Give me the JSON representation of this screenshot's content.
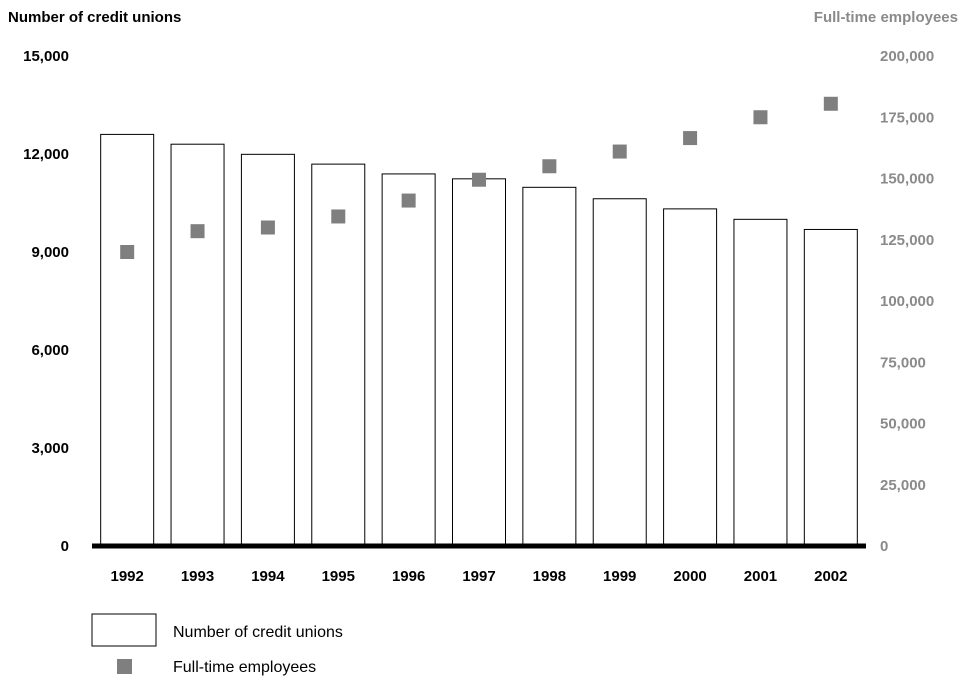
{
  "chart_data": {
    "type": "bar",
    "categories": [
      "1992",
      "1993",
      "1994",
      "1995",
      "1996",
      "1997",
      "1998",
      "1999",
      "2000",
      "2001",
      "2002"
    ],
    "series": [
      {
        "name": "Number of credit unions",
        "type": "bar",
        "axis": "left",
        "values": [
          12600,
          12300,
          11990,
          11690,
          11390,
          11240,
          10980,
          10630,
          10320,
          10000,
          9690
        ]
      },
      {
        "name": "Full-time employees",
        "type": "scatter",
        "axis": "right",
        "values": [
          120000,
          128500,
          130000,
          134500,
          141000,
          149500,
          155000,
          161000,
          166500,
          175000,
          180500
        ]
      }
    ],
    "ylabel": "Number of credit unions",
    "y2label": "Full-time employees",
    "ylim": [
      0,
      15000
    ],
    "y2lim": [
      0,
      200000
    ],
    "yticks": [
      "0",
      "3,000",
      "6,000",
      "9,000",
      "12,000",
      "15,000"
    ],
    "y2ticks": [
      "0",
      "25,000",
      "50,000",
      "75,000",
      "100,000",
      "125,000",
      "150,000",
      "175,000",
      "200,000"
    ],
    "grid": false,
    "legend": {
      "position": "bottom-left",
      "entries": [
        "Number of credit unions",
        "Full-time employees"
      ]
    },
    "colors": {
      "bar_fill": "#ffffff",
      "bar_stroke": "#000000",
      "marker": "#7f7f7f",
      "left_axis_text": "#000000",
      "right_axis_text": "#8a8a8a",
      "baseline": "#000000"
    }
  }
}
